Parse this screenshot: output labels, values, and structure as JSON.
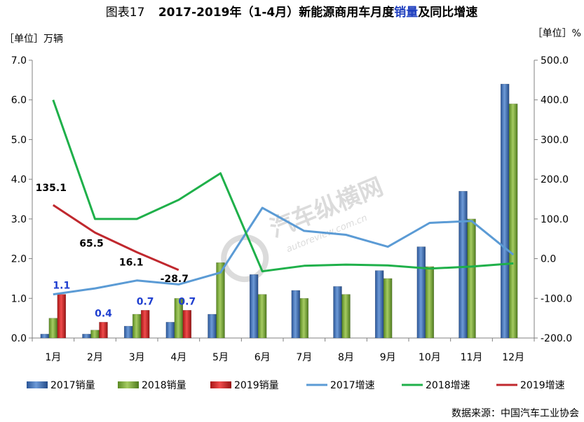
{
  "chart_data": {
    "type": "bar",
    "title_prefix": "图表17",
    "title_main": "2017-2019年（1-4月）新能源商用车月度",
    "title_highlight": "销量",
    "title_suffix": "及同比增速",
    "left_unit": "［单位］万辆",
    "right_unit": "［单位］%",
    "source": "数据来源：中国汽车工业协会",
    "watermark_cn": "汽车纵横网",
    "watermark_en": "autoreview.com.cn",
    "categories": [
      "1月",
      "2月",
      "3月",
      "4月",
      "5月",
      "6月",
      "7月",
      "8月",
      "9月",
      "10月",
      "11月",
      "12月"
    ],
    "y_left": {
      "min": 0,
      "max": 7,
      "ticks": [
        "0.0",
        "1.0",
        "2.0",
        "3.0",
        "4.0",
        "5.0",
        "6.0",
        "7.0"
      ]
    },
    "y_right": {
      "min": -200,
      "max": 500,
      "ticks": [
        "-200.0",
        "-100.0",
        "0.0",
        "100.0",
        "200.0",
        "300.0",
        "400.0",
        "500.0"
      ]
    },
    "bar_series": [
      {
        "name": "2017销量",
        "color": "#3a6fb8",
        "values": [
          0.1,
          0.1,
          0.3,
          0.4,
          0.6,
          1.6,
          1.2,
          1.3,
          1.7,
          2.3,
          3.7,
          6.4
        ]
      },
      {
        "name": "2018销量",
        "color": "#7aa83a",
        "values": [
          0.5,
          0.2,
          0.6,
          1.0,
          1.9,
          1.1,
          1.0,
          1.1,
          1.5,
          1.8,
          3.0,
          5.9
        ]
      },
      {
        "name": "2019销量",
        "color": "#d42a2a",
        "values": [
          1.1,
          0.4,
          0.7,
          0.7,
          null,
          null,
          null,
          null,
          null,
          null,
          null,
          null
        ]
      }
    ],
    "line_series": [
      {
        "name": "2017增速",
        "color": "#5b9bd5",
        "values": [
          -90,
          -75,
          -55,
          -65,
          -35,
          128,
          70,
          60,
          30,
          90,
          95,
          10
        ]
      },
      {
        "name": "2018增速",
        "color": "#1fb04a",
        "values": [
          400,
          100,
          100,
          148,
          215,
          -32,
          -18,
          -15,
          -17,
          -25,
          -20,
          -12
        ]
      },
      {
        "name": "2019增速",
        "color": "#c0282e",
        "values": [
          135.1,
          65.5,
          16.1,
          -28.7,
          null,
          null,
          null,
          null,
          null,
          null,
          null,
          null
        ]
      }
    ],
    "bar_labels": [
      "1.1",
      "0.4",
      "0.7",
      "0.7"
    ],
    "line_labels": [
      "135.1",
      "65.5",
      "16.1",
      "-28.7"
    ],
    "legend": [
      "2017销量",
      "2018销量",
      "2019销量",
      "2017增速",
      "2018增速",
      "2019增速"
    ],
    "legend_position": "bottom",
    "grid": false
  }
}
